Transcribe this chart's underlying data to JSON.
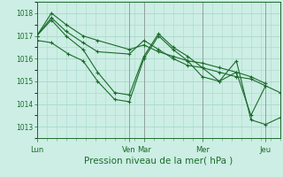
{
  "bg_color": "#cceee4",
  "grid_color": "#aad8cc",
  "line_color": "#1a6b2a",
  "ylim": [
    1012.5,
    1018.5
  ],
  "yticks": [
    1013,
    1014,
    1015,
    1016,
    1017,
    1018
  ],
  "xlabel": "Pression niveau de la mer( hPa )",
  "xlabel_fontsize": 7.5,
  "day_labels": [
    "Lun",
    "Ven",
    "Mar",
    "Mer",
    "Jeu"
  ],
  "day_positions": [
    0,
    0.38,
    0.44,
    0.68,
    0.94
  ],
  "xlim": [
    0,
    1.0
  ],
  "series": [
    {
      "x": [
        0.0,
        0.06,
        0.12,
        0.19,
        0.25,
        0.38,
        0.44,
        0.5,
        0.56,
        0.62,
        0.68,
        0.75,
        0.82,
        0.88,
        0.94
      ],
      "y": [
        1017.0,
        1018.0,
        1017.5,
        1017.0,
        1016.8,
        1016.4,
        1016.6,
        1016.3,
        1016.1,
        1015.9,
        1015.8,
        1015.6,
        1015.4,
        1015.2,
        1014.9
      ]
    },
    {
      "x": [
        0.0,
        0.06,
        0.12,
        0.19,
        0.25,
        0.38,
        0.44,
        0.5,
        0.56,
        0.62,
        0.68,
        0.75,
        0.82,
        0.88,
        0.94
      ],
      "y": [
        1017.0,
        1017.8,
        1017.2,
        1016.7,
        1016.3,
        1016.2,
        1016.8,
        1016.4,
        1016.0,
        1015.7,
        1015.6,
        1015.4,
        1015.2,
        1015.1,
        1014.8
      ]
    },
    {
      "x": [
        0.0,
        0.06,
        0.13,
        0.19,
        0.25,
        0.32,
        0.38,
        0.44,
        0.5,
        0.56,
        0.62,
        0.68,
        0.75,
        0.82,
        0.88,
        0.94,
        1.0
      ],
      "y": [
        1016.8,
        1016.7,
        1016.2,
        1015.9,
        1015.0,
        1014.2,
        1014.1,
        1016.0,
        1017.0,
        1016.4,
        1015.9,
        1015.2,
        1015.0,
        1015.9,
        1013.3,
        1013.1,
        1013.4
      ]
    },
    {
      "x": [
        0.0,
        0.06,
        0.12,
        0.19,
        0.25,
        0.32,
        0.38,
        0.44,
        0.5,
        0.56,
        0.62,
        0.68,
        0.75,
        0.82,
        0.88,
        0.94,
        1.0
      ],
      "y": [
        1017.0,
        1017.7,
        1017.0,
        1016.4,
        1015.4,
        1014.5,
        1014.4,
        1016.1,
        1017.1,
        1016.5,
        1016.1,
        1015.6,
        1015.0,
        1015.4,
        1013.5,
        1014.8,
        1014.5
      ]
    }
  ]
}
